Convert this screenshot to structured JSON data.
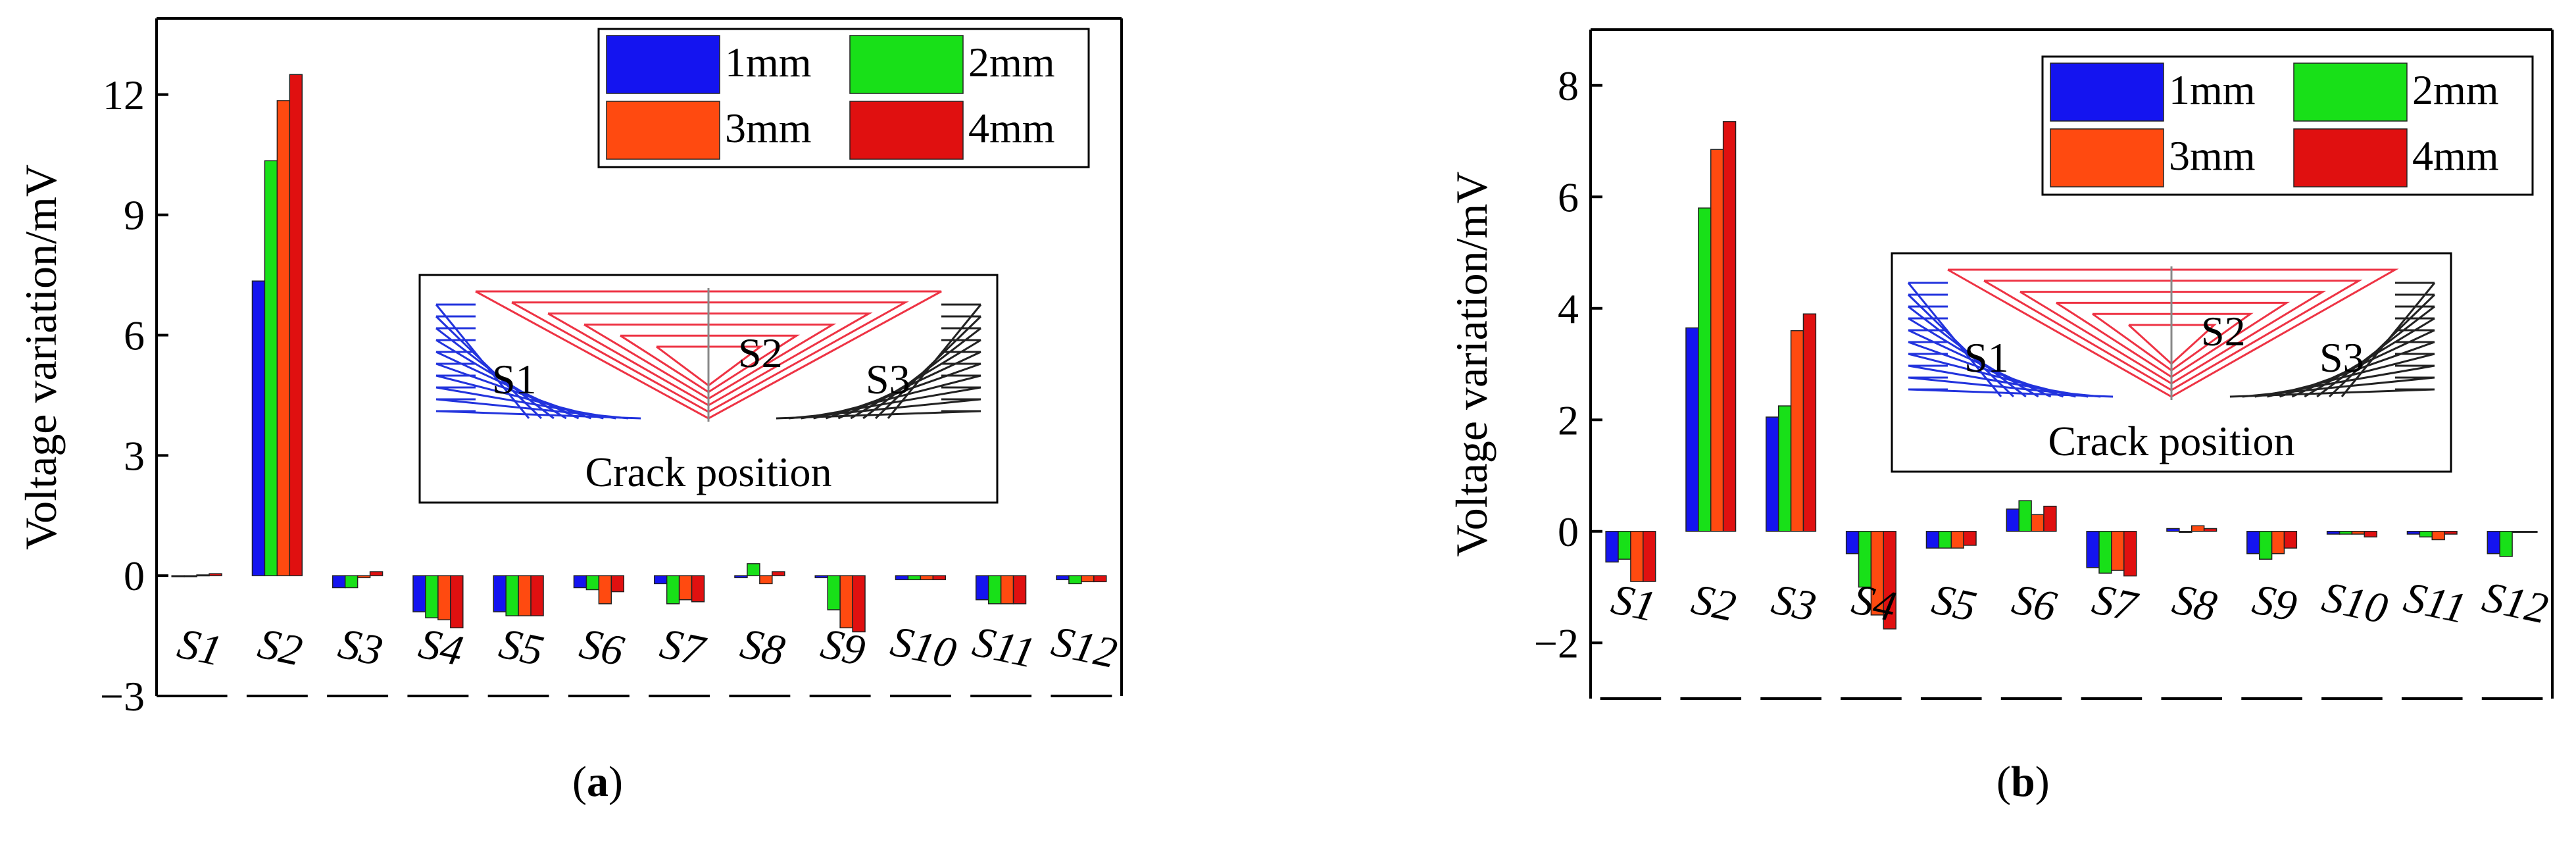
{
  "chart_data": [
    {
      "panel": "a",
      "type": "bar",
      "caption_open": "(",
      "caption_letter": "a",
      "caption_close": ")",
      "ylabel": "Voltage variation/mV",
      "xlabel": "",
      "ylim": [
        -3,
        13.9
      ],
      "yticks": [
        -3,
        0,
        3,
        6,
        9,
        12
      ],
      "ytick_labels": [
        "−3",
        "0",
        "3",
        "6",
        "9",
        "12"
      ],
      "categories": [
        "S1",
        "S2",
        "S3",
        "S4",
        "S5",
        "S6",
        "S7",
        "S8",
        "S9",
        "S10",
        "S11",
        "S12"
      ],
      "series": [
        {
          "name": "1mm",
          "color": "#1414f0",
          "values": [
            0.0,
            7.35,
            -0.3,
            -0.9,
            -0.9,
            -0.3,
            -0.2,
            -0.05,
            -0.05,
            -0.1,
            -0.6,
            -0.1
          ]
        },
        {
          "name": "2mm",
          "color": "#18e018",
          "values": [
            0.0,
            10.35,
            -0.3,
            -1.05,
            -1.0,
            -0.35,
            -0.7,
            0.3,
            -0.85,
            -0.1,
            -0.7,
            -0.2
          ]
        },
        {
          "name": "3mm",
          "color": "#ff4a10",
          "values": [
            0.02,
            11.85,
            -0.05,
            -1.1,
            -1.0,
            -0.7,
            -0.6,
            -0.2,
            -1.3,
            -0.1,
            -0.7,
            -0.15
          ]
        },
        {
          "name": "4mm",
          "color": "#e01010",
          "values": [
            0.05,
            12.5,
            0.1,
            -1.3,
            -1.0,
            -0.4,
            -0.65,
            0.1,
            -1.4,
            -0.1,
            -0.7,
            -0.15
          ]
        }
      ],
      "inset": {
        "labels": [
          "S1",
          "S2",
          "S3"
        ],
        "title": "Crack position"
      }
    },
    {
      "panel": "b",
      "type": "bar",
      "caption_open": "(",
      "caption_letter": "b",
      "caption_close": ")",
      "ylabel": "Voltage variation/mV",
      "xlabel": "",
      "ylim": [
        -3,
        9
      ],
      "yticks": [
        -2,
        0,
        2,
        4,
        6,
        8
      ],
      "ytick_labels": [
        "−2",
        "0",
        "2",
        "4",
        "6",
        "8"
      ],
      "categories": [
        "S1",
        "S2",
        "S3",
        "S4",
        "S5",
        "S6",
        "S7",
        "S8",
        "S9",
        "S10",
        "S11",
        "S12"
      ],
      "series": [
        {
          "name": "1mm",
          "color": "#1414f0",
          "values": [
            -0.55,
            3.65,
            2.05,
            -0.4,
            -0.3,
            0.4,
            -0.65,
            0.05,
            -0.4,
            -0.05,
            -0.05,
            -0.4
          ]
        },
        {
          "name": "2mm",
          "color": "#18e018",
          "values": [
            -0.5,
            5.8,
            2.25,
            -1.0,
            -0.3,
            0.55,
            -0.75,
            0.0,
            -0.5,
            -0.05,
            -0.1,
            -0.45
          ]
        },
        {
          "name": "3mm",
          "color": "#ff4a10",
          "values": [
            -0.9,
            6.85,
            3.6,
            -1.5,
            -0.3,
            0.3,
            -0.7,
            0.1,
            -0.4,
            -0.05,
            -0.15,
            0.0
          ]
        },
        {
          "name": "4mm",
          "color": "#e01010",
          "values": [
            -0.9,
            7.35,
            3.9,
            -1.75,
            -0.25,
            0.45,
            -0.8,
            0.05,
            -0.3,
            -0.1,
            -0.05,
            0.0
          ]
        }
      ],
      "inset": {
        "labels": [
          "S1",
          "S2",
          "S3"
        ],
        "title": "Crack position"
      }
    }
  ]
}
